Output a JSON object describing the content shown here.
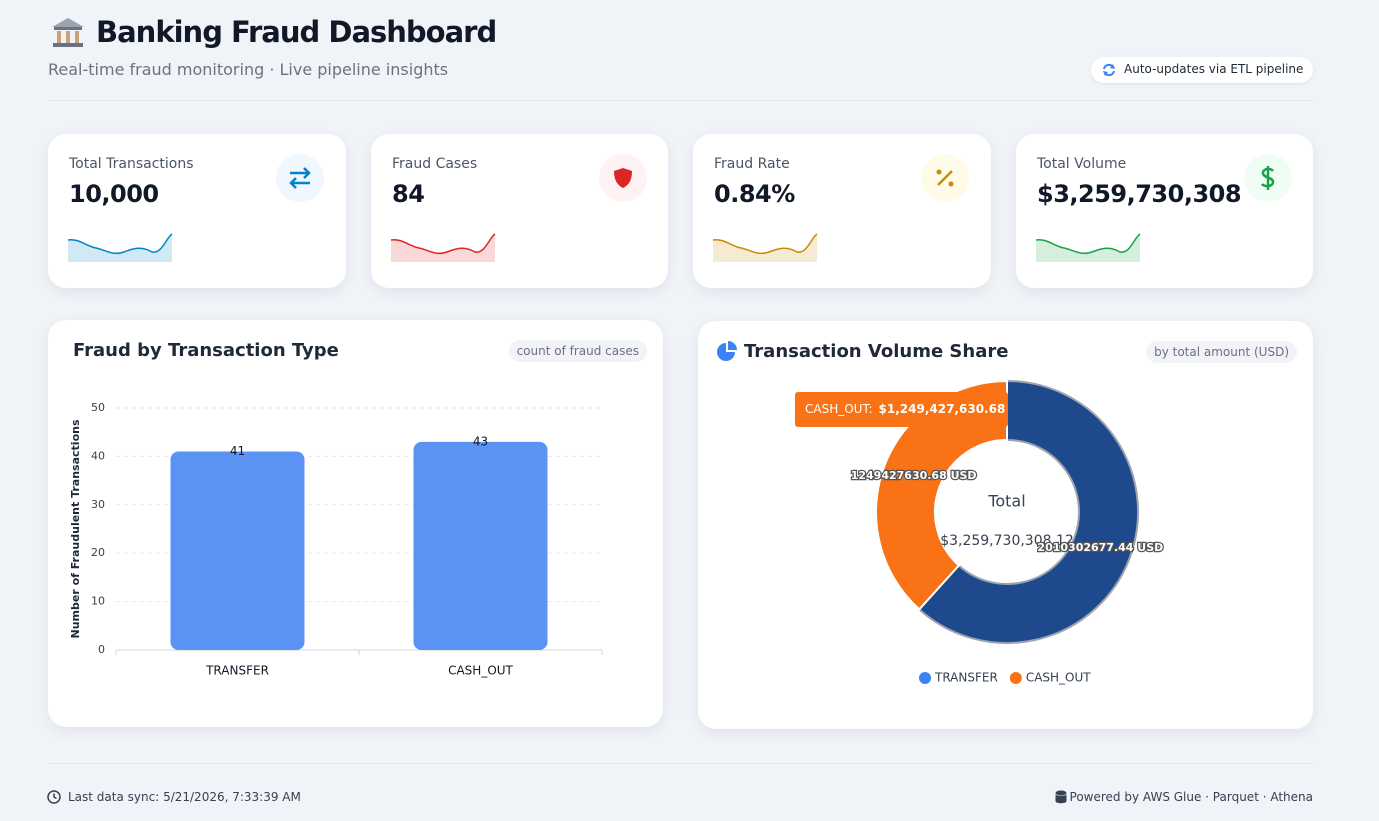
{
  "header": {
    "title": "Banking Fraud Dashboard",
    "subtitle": "Real-time fraud monitoring · Live pipeline insights",
    "badge": "Auto-updates via ETL pipeline"
  },
  "kpis": [
    {
      "label": "Total Transactions",
      "value": "10,000"
    },
    {
      "label": "Fraud Cases",
      "value": "84"
    },
    {
      "label": "Fraud Rate",
      "value": "0.84%"
    },
    {
      "label": "Total Volume",
      "value": "$3,259,730,308"
    }
  ],
  "chart_data": [
    {
      "type": "bar",
      "title": "Fraud by Transaction Type",
      "badge": "count of fraud cases",
      "y_label": "Number of Fraudulent Transactions",
      "categories": [
        "TRANSFER",
        "CASH_OUT"
      ],
      "values": [
        41,
        43
      ],
      "color": "#5b93f5",
      "ylim": [
        0,
        50
      ],
      "yticks": [
        0,
        10,
        20,
        30,
        40,
        50
      ],
      "grid": true
    },
    {
      "type": "donut",
      "title": "Transaction Volume Share",
      "badge": "by total amount (USD)",
      "categories": [
        "TRANSFER",
        "CASH_OUT"
      ],
      "values": [
        2010302677.44,
        1249427630.68
      ],
      "value_labels": [
        "2010302677.44 USD",
        "1249427630.68 USD"
      ],
      "colors": [
        "#1e4a8d",
        "#f97316"
      ],
      "legend_colors": [
        "#3b82f6",
        "#f97316"
      ],
      "center_label": "Total",
      "center_value": "$3,259,730,308.12",
      "tooltip": {
        "label": "CASH_OUT:",
        "value": "$1,249,427,630.68"
      }
    }
  ],
  "footer": {
    "sync": "Last data sync: 5/21/2026, 7:33:39 AM",
    "powered": "Powered by AWS Glue · Parquet · Athena"
  }
}
